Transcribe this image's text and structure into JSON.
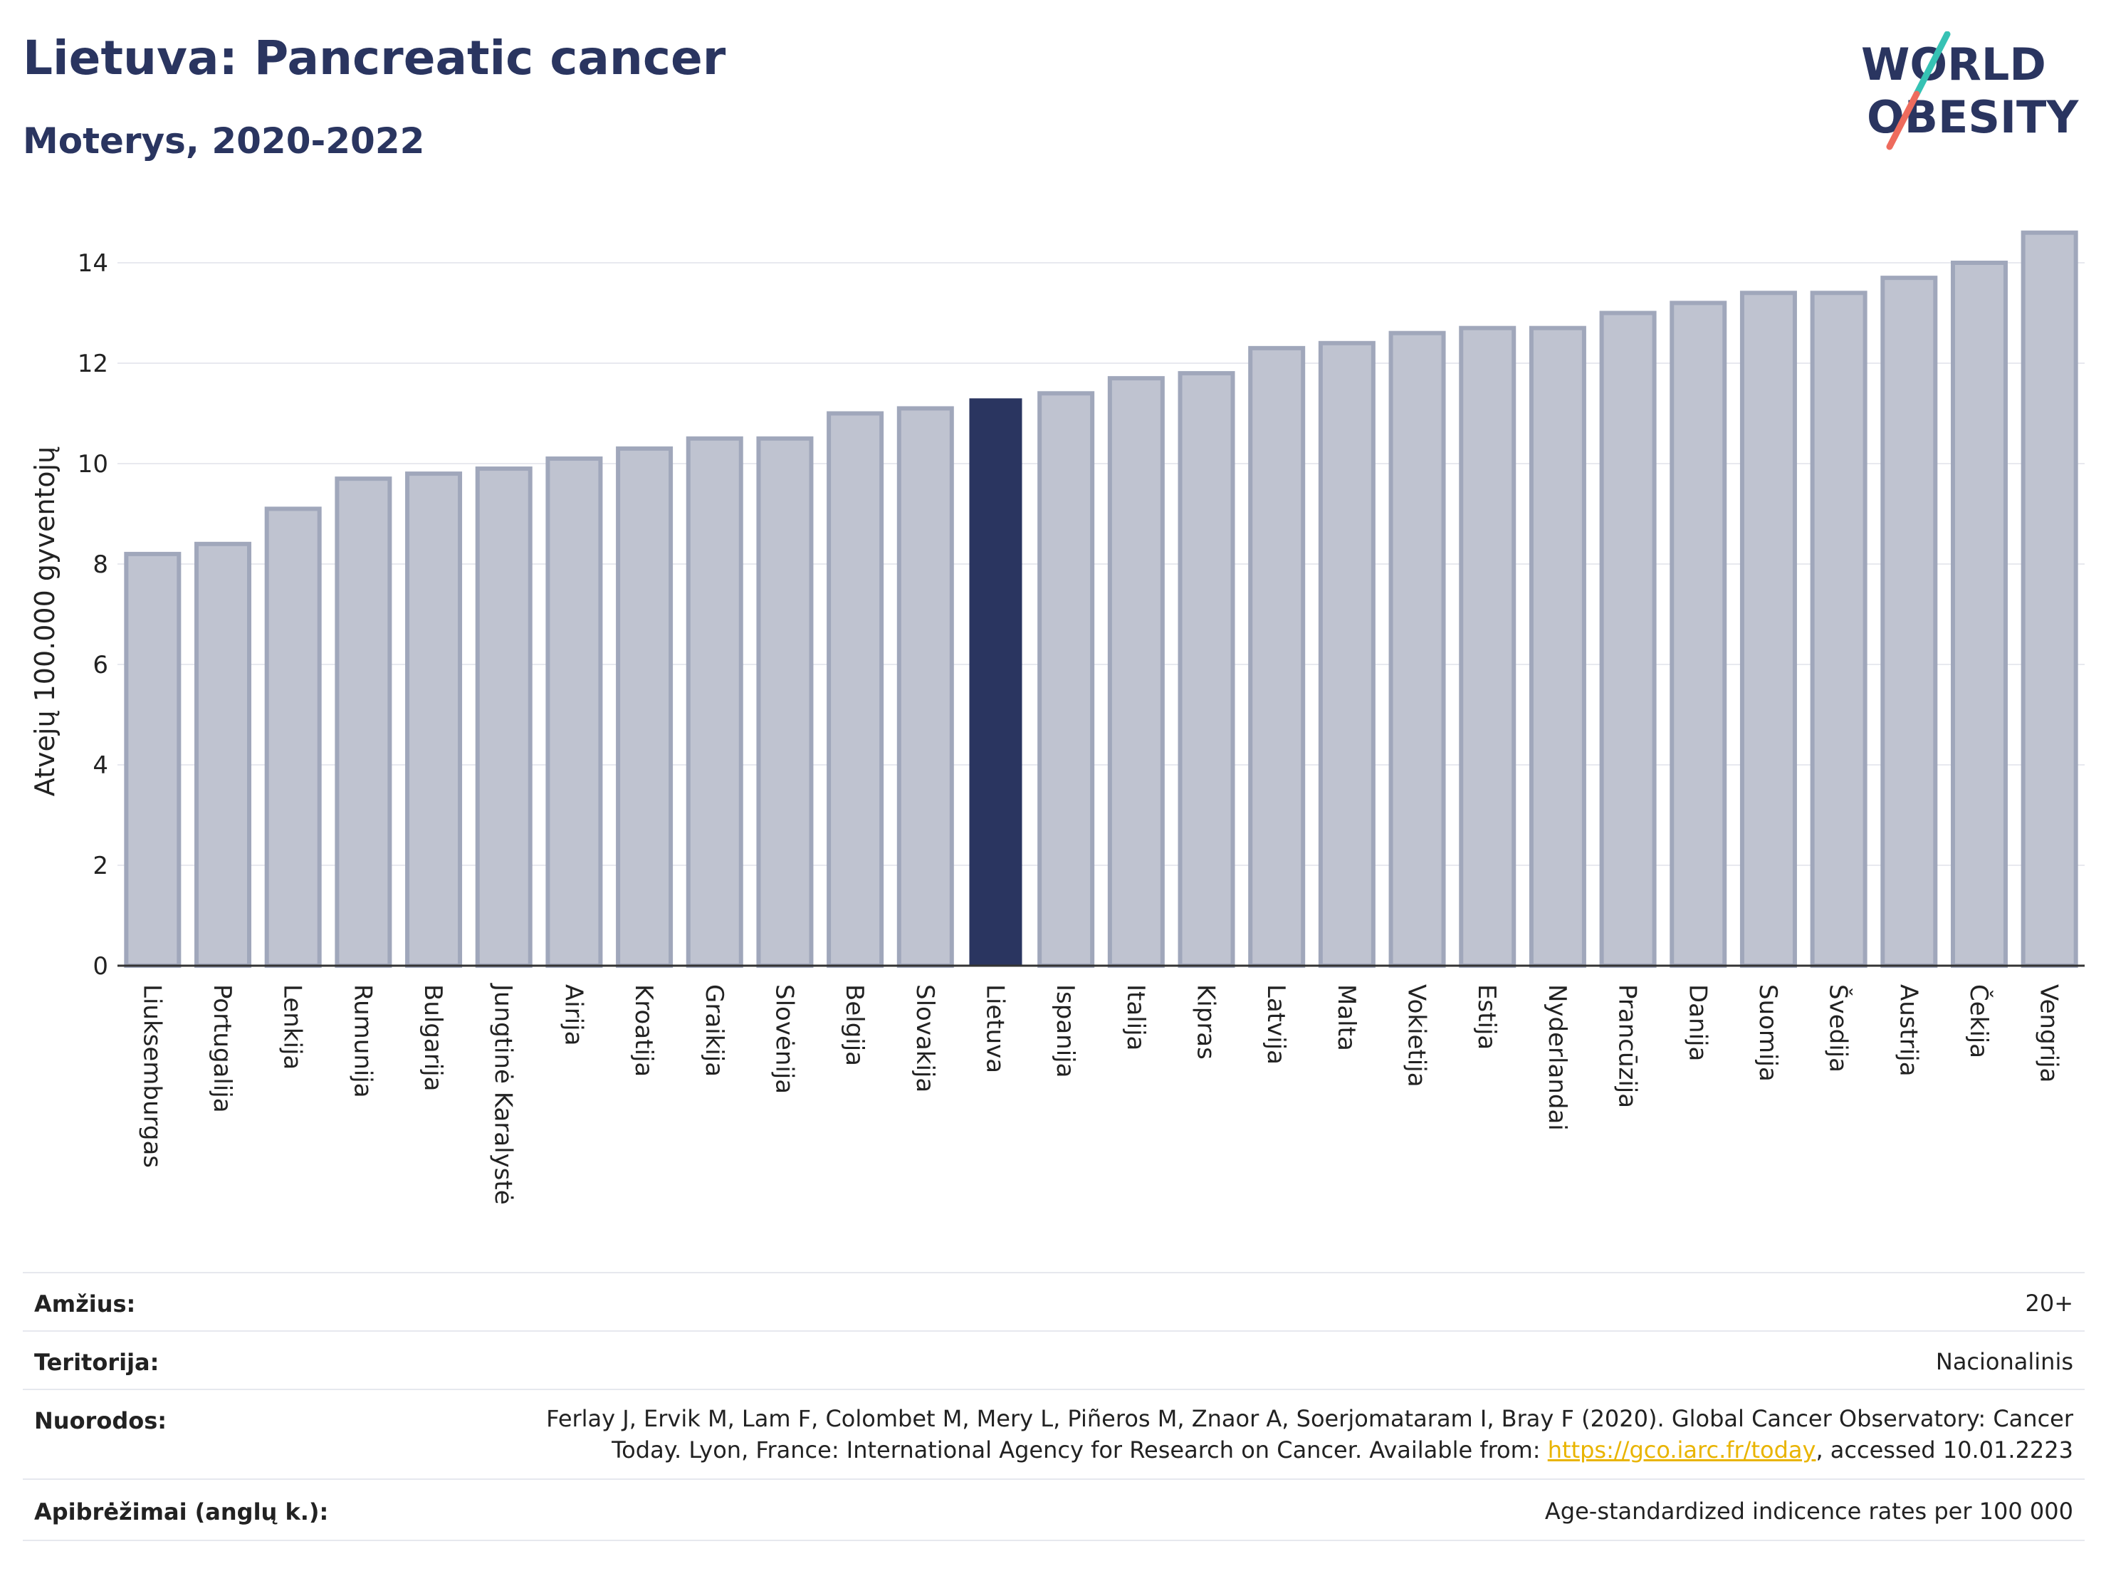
{
  "header": {
    "title": "Lietuva: Pancreatic cancer",
    "subtitle": "Moterys, 2020-2022"
  },
  "logo": {
    "line1": "WORLD",
    "line2": "OBESITY",
    "colors": {
      "text": "#2a3560",
      "slash_top": "#36c2b4",
      "slash_bottom": "#ee6b5d"
    }
  },
  "colors": {
    "bar": "#bfc3d0",
    "bar_stroke": "#a0a7bb",
    "highlight": "#2a3560",
    "grid": "#e8e9ef",
    "axis": "#333333"
  },
  "chart_data": {
    "type": "bar",
    "ylabel": "Atvejų 100.000 gyventojų",
    "ylim": [
      0,
      15
    ],
    "yticks": [
      0,
      2,
      4,
      6,
      8,
      10,
      12,
      14
    ],
    "grid": true,
    "highlight": "Lietuva",
    "categories": [
      "Liuksemburgas",
      "Portugalija",
      "Lenkija",
      "Rumunija",
      "Bulgarija",
      "Jungtinė Karalystė",
      "Airija",
      "Kroatija",
      "Graikija",
      "Slovėnija",
      "Belgija",
      "Slovakija",
      "Lietuva",
      "Ispanija",
      "Italija",
      "Kipras",
      "Latvija",
      "Malta",
      "Vokietija",
      "Estija",
      "Nyderlandai",
      "Prancūzija",
      "Danija",
      "Suomija",
      "Švedija",
      "Austrija",
      "Čekija",
      "Vengrija"
    ],
    "values": [
      8.2,
      8.4,
      9.1,
      9.7,
      9.8,
      9.9,
      10.1,
      10.3,
      10.5,
      10.5,
      11.0,
      11.1,
      11.3,
      11.4,
      11.7,
      11.8,
      12.3,
      12.4,
      12.6,
      12.7,
      12.7,
      13.0,
      13.2,
      13.4,
      13.4,
      13.7,
      14.0,
      14.6
    ]
  },
  "meta": {
    "age": {
      "label": "Amžius:",
      "value": "20+"
    },
    "territory": {
      "label": "Teritorija:",
      "value": "Nacionalinis"
    },
    "references": {
      "label": "Nuorodos:",
      "line1": "Ferlay J, Ervik M, Lam F, Colombet M, Mery L, Piñeros M, Znaor A, Soerjomataram I, Bray F (2020). Global Cancer Observatory: Cancer",
      "line2_pre": "Today. Lyon, France: International Agency for Research on Cancer. Available from: ",
      "link": "https://gco.iarc.fr/today",
      "line2_post": ", accessed 10.01.2223"
    },
    "definitions": {
      "label": "Apibrėžimai (anglų k.):",
      "value": "Age-standardized indicence rates per 100 000"
    }
  }
}
